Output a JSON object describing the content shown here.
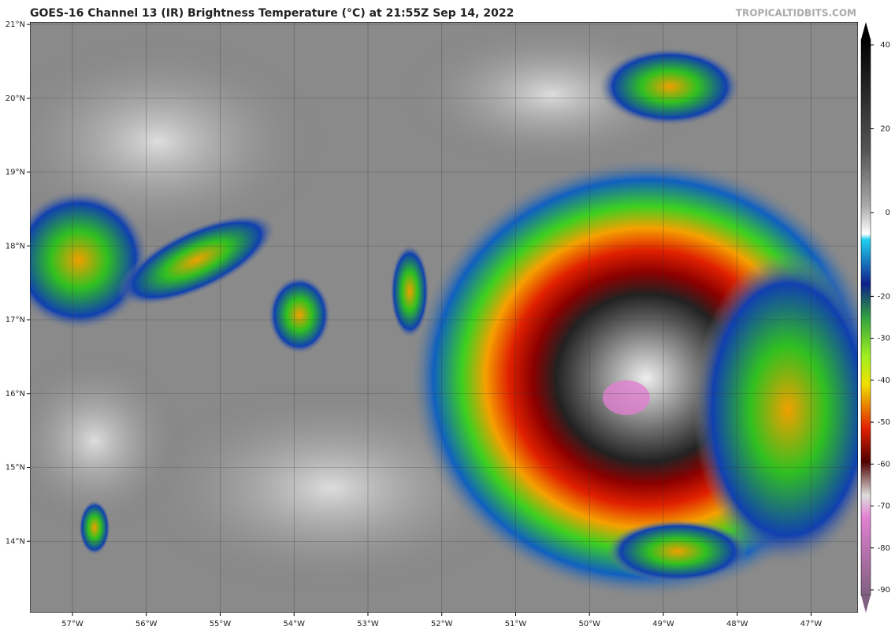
{
  "header": {
    "title": "GOES-16 Channel 13 (IR) Brightness Temperature (°C) at 21:55Z Sep 14, 2022",
    "credit": "TROPICALTIDBITS.COM"
  },
  "map": {
    "lat_labels": [
      "21°N",
      "20°N",
      "19°N",
      "18°N",
      "17°N",
      "16°N",
      "15°N",
      "14°N"
    ],
    "lon_labels": [
      "57°W",
      "56°W",
      "55°W",
      "54°W",
      "53°W",
      "52°W",
      "51°W",
      "50°W",
      "49°W",
      "48°W",
      "47°W"
    ]
  },
  "colorbar": {
    "ticks": [
      40,
      20,
      0,
      -20,
      -30,
      -40,
      -50,
      -60,
      -70,
      -80,
      -90
    ]
  }
}
